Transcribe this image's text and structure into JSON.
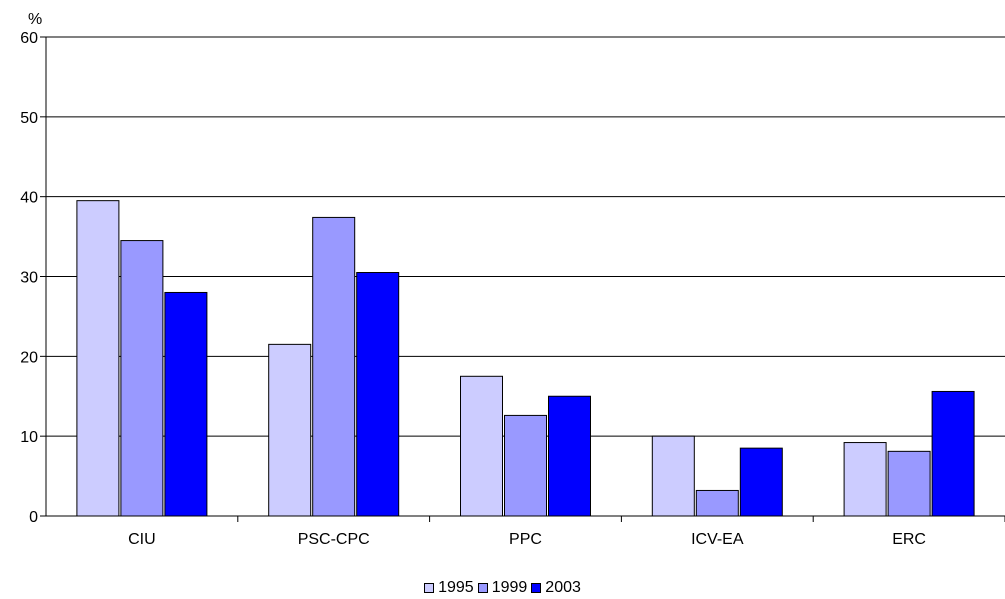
{
  "chart_data": {
    "type": "bar",
    "ylabel": "%",
    "ylim": [
      0,
      60
    ],
    "yticks": [
      "0",
      "10",
      "20",
      "30",
      "40",
      "50",
      "60"
    ],
    "categories": [
      "CIU",
      "PSC-CPC",
      "PPC",
      "ICV-EA",
      "ERC"
    ],
    "series": [
      {
        "name": "1995",
        "color": "#ccccff",
        "values": [
          39.5,
          21.5,
          17.5,
          10.0,
          9.2
        ]
      },
      {
        "name": "1999",
        "color": "#9999ff",
        "values": [
          34.5,
          37.4,
          12.6,
          3.2,
          8.1
        ]
      },
      {
        "name": "2003",
        "color": "#0000ff",
        "values": [
          28.0,
          30.5,
          15.0,
          8.5,
          15.6
        ]
      }
    ],
    "grid": true,
    "legend_position": "bottom"
  }
}
